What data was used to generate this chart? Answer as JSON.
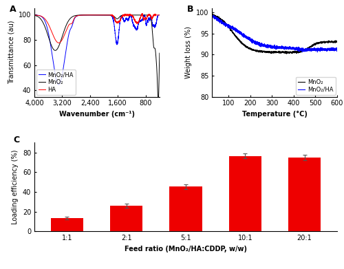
{
  "panel_A": {
    "label": "A",
    "xlabel": "Wavenumber (cm⁻¹)",
    "ylabel": "Transmittance (au)",
    "xlim": [
      4000,
      400
    ],
    "ylim": [
      35,
      105
    ],
    "yticks": [
      40,
      60,
      80,
      100
    ],
    "xticks": [
      4000,
      3200,
      2400,
      1600,
      800
    ],
    "xticklabels": [
      "4,000",
      "3,200",
      "2,400",
      "1,600",
      "800"
    ],
    "legend": [
      "MnO₂/HA",
      "MnO₂",
      "HA"
    ],
    "line_colors": [
      "blue",
      "black",
      "red"
    ]
  },
  "panel_B": {
    "label": "B",
    "xlabel": "Temperature (°C)",
    "ylabel": "Weight loss (%)",
    "xlim": [
      25,
      600
    ],
    "ylim": [
      80,
      101
    ],
    "yticks": [
      80,
      85,
      90,
      95,
      100
    ],
    "xticks": [
      100,
      200,
      300,
      400,
      500,
      600
    ],
    "legend": [
      "MnO₂",
      "MnO₂/HA"
    ],
    "line_colors": [
      "black",
      "blue"
    ]
  },
  "panel_C": {
    "label": "C",
    "xlabel": "Feed ratio (MnO₂/HA:CDDP, w/w)",
    "ylabel": "Loading efficiency (%)",
    "categories": [
      "1:1",
      "2:1",
      "5:1",
      "10:1",
      "20:1"
    ],
    "values": [
      13.5,
      26.0,
      45.5,
      76.5,
      75.0
    ],
    "errors": [
      1.5,
      2.0,
      2.5,
      2.5,
      2.5
    ],
    "bar_color": "#ee0000",
    "ylim": [
      0,
      90
    ],
    "yticks": [
      0,
      20,
      40,
      60,
      80
    ]
  },
  "background_color": "white",
  "font_size": 7
}
